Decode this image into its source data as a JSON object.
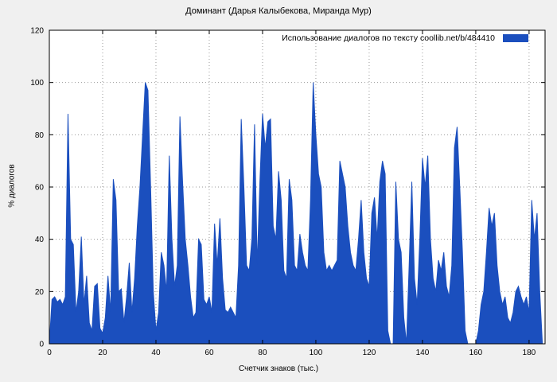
{
  "title": "Доминант (Дарья Калыбекова, Миранда Мур)",
  "legend": {
    "label": "Использование диалогов по тексту  coollib.net/b/484410"
  },
  "colors": {
    "series": "#1b4fbe",
    "figure_bg": "#f0f0f0",
    "plot_bg": "#ffffff",
    "grid": "#9a9a9a",
    "border": "#000000"
  },
  "chart_data": {
    "type": "area",
    "title": "Доминант (Дарья Калыбекова, Миранда Мур)",
    "xlabel": "Счетчик знаков (тыс.)",
    "ylabel": "% диалогов",
    "legend_label": "Использование диалогов по тексту  coollib.net/b/484410",
    "legend_position": "top-right-inside",
    "grid": true,
    "xlim": [
      0,
      186
    ],
    "ylim": [
      0,
      120
    ],
    "x_ticks": [
      0,
      20,
      40,
      60,
      80,
      100,
      120,
      140,
      160,
      180
    ],
    "y_ticks": [
      0,
      20,
      40,
      60,
      80,
      100,
      120
    ],
    "x_start": 0,
    "x_step": 1,
    "values": [
      0,
      17,
      18,
      16,
      17,
      15,
      18,
      88,
      40,
      38,
      12,
      20,
      41,
      15,
      26,
      8,
      5,
      22,
      23,
      6,
      4,
      10,
      26,
      12,
      63,
      55,
      20,
      21,
      8,
      18,
      31,
      12,
      25,
      45,
      60,
      80,
      100,
      97,
      60,
      20,
      5,
      12,
      35,
      30,
      20,
      72,
      40,
      22,
      30,
      87,
      62,
      40,
      30,
      18,
      10,
      12,
      40,
      38,
      17,
      15,
      18,
      12,
      46,
      30,
      48,
      25,
      13,
      12,
      14,
      12,
      10,
      30,
      86,
      60,
      30,
      28,
      40,
      84,
      30,
      62,
      88,
      75,
      85,
      86,
      45,
      40,
      66,
      55,
      28,
      25,
      63,
      55,
      30,
      28,
      42,
      35,
      30,
      28,
      55,
      100,
      80,
      65,
      60,
      35,
      28,
      30,
      28,
      30,
      32,
      70,
      65,
      60,
      45,
      35,
      30,
      28,
      40,
      55,
      35,
      25,
      22,
      50,
      56,
      40,
      62,
      70,
      65,
      5,
      0,
      0,
      62,
      40,
      35,
      10,
      0,
      30,
      62,
      25,
      15,
      40,
      71,
      60,
      72,
      40,
      25,
      20,
      32,
      28,
      35,
      22,
      18,
      30,
      75,
      83,
      60,
      35,
      5,
      0,
      0,
      0,
      0,
      5,
      15,
      20,
      35,
      52,
      45,
      50,
      30,
      20,
      15,
      18,
      10,
      8,
      12,
      20,
      22,
      18,
      15,
      18,
      12,
      55,
      40,
      50,
      20,
      0
    ]
  }
}
